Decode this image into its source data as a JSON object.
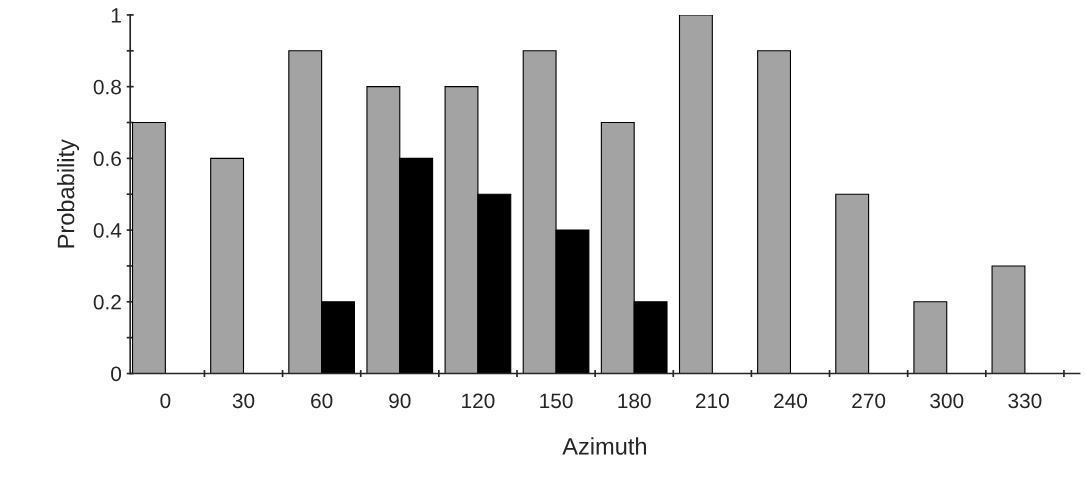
{
  "chart_data": {
    "type": "bar",
    "xlabel": "Azimuth",
    "ylabel": "Probability",
    "categories": [
      "0",
      "30",
      "60",
      "90",
      "120",
      "150",
      "180",
      "210",
      "240",
      "270",
      "300",
      "330"
    ],
    "series": [
      {
        "color": "#a3a3a3",
        "values": [
          0.7,
          0.6,
          0.9,
          0.8,
          0.8,
          0.9,
          0.7,
          1,
          0.9,
          0.5,
          0.2,
          0.3
        ]
      },
      {
        "color": "#000000",
        "values": [
          null,
          null,
          0.2,
          0.6,
          0.5,
          0.4,
          0.2,
          null,
          null,
          null,
          null,
          null
        ]
      }
    ],
    "ylim": [
      0,
      1
    ],
    "yticks": [
      0,
      {
        "value": 0.1,
        "label": null
      },
      0.2,
      {
        "value": 0.3,
        "label": null
      },
      0.4,
      {
        "value": 0.5,
        "label": null
      },
      0.6,
      {
        "value": 0.7,
        "label": null
      },
      0.8,
      {
        "value": 0.9,
        "label": null
      },
      1
    ],
    "grid": false,
    "legend": false
  }
}
